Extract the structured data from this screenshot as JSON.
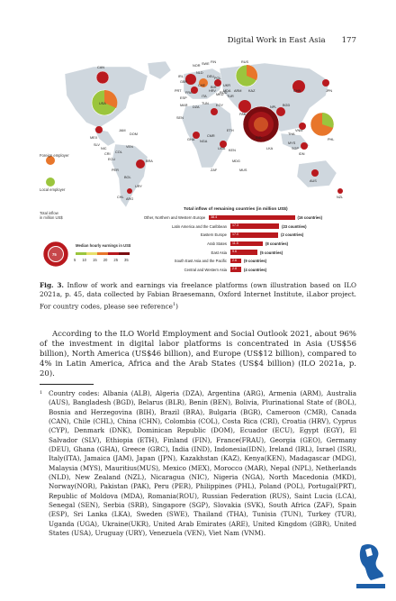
{
  "header": {
    "running_title": "Digital Work in East Asia",
    "page_number": "177"
  },
  "figure": {
    "legend": {
      "foreign_employer": "Foreign employer",
      "local_employer": "Local employer",
      "total_inflow_label": "Total inflow\nin million US$",
      "sample_pie_value": "75",
      "earnings_title": "Median hourly earnings in US$",
      "earnings_scale": [
        "5",
        "10",
        "15",
        "20",
        "25",
        "35"
      ]
    },
    "map_labels": [
      "SWE",
      "NOR",
      "FIN",
      "IRL",
      "NLD",
      "GBR",
      "DEU",
      "POL",
      "UKR",
      "RUS",
      "FRA",
      "ESP",
      "ITA",
      "ROU",
      "HRV",
      "CHE",
      "USA",
      "CAN",
      "MEX",
      "SLV",
      "NIC",
      "CRI",
      "COL",
      "ECU",
      "PER",
      "BOL",
      "BRA",
      "ARG",
      "CHL",
      "URY",
      "VEN",
      "DOM",
      "JAM",
      "PRT",
      "SEN",
      "GHA",
      "NGA",
      "CMR",
      "ETH",
      "EGY",
      "TUR",
      "TUN",
      "DZA",
      "MAR",
      "UGA",
      "KEN",
      "ZAF",
      "MDG",
      "IND",
      "PAK",
      "BGD",
      "LKA",
      "NPL",
      "CHN",
      "JPN",
      "PHL",
      "VNM",
      "IDN",
      "MYS",
      "SGP",
      "THA",
      "AUS",
      "NZL",
      "KAZ",
      "MUS",
      "ARM",
      "BIH",
      "MKD",
      "MDA"
    ],
    "bar_chart": {
      "title": "Total inflow of remaining countries (in million US$)",
      "rows": [
        {
          "label": "Other, Northern and Western Europe",
          "value": "38.4",
          "note": "(16 countries)"
        },
        {
          "label": "Latin America and the Caribbean",
          "value": "17.3",
          "note": "(23 countries)"
        },
        {
          "label": "Eastern Europe",
          "value": "17.0",
          "note": "(2 countries)"
        },
        {
          "label": "Arab States",
          "value": "11.5",
          "note": "(8 countries)"
        },
        {
          "label": "East Asia",
          "value": "9.6",
          "note": "(5 countries)"
        },
        {
          "label": "South East Asia and the Pacific",
          "value": "2.6",
          "note": "(9 countries)"
        },
        {
          "label": "Central and Western Asia",
          "value": "2.8",
          "note": "(4 countries)"
        }
      ]
    }
  },
  "caption": {
    "label": "Fig. 3.",
    "text": "Inflow of work and earnings via freelance platforms (own illustration based on ILO 2021a, p. 45, data collected by Fabian Braesemann, Oxford Internet Institute, iLabor project. For country codes, please see reference",
    "ref": "1",
    "tail": ")"
  },
  "body": "According to the ILO World Employment and Social Outlook 2021, about 96% of the investment in digital labor platforms is concentrated in Asia (US$56 billion), North America (US$46 billion), and Europe (US$12 billion), compared to 4% in Latin America, Africa and the Arab States (US$4 billion) (ILO 2021a, p. 20).",
  "footnote": {
    "mark": "1",
    "text": "Country codes: Albania (ALB), Algeria (DZA), Argentina (ARG), Armenia (ARM), Australia (AUS), Bangladesh (BGD), Belarus (BLR), Benin (BEN), Bolivia, Plurinational State of (BOL), Bosnia and Herzegovina (BIH), Brazil (BRA), Bulgaria (BGR), Cameroon (CMR), Canada (CAN), Chile (CHL), China (CHN), Colombia (COL), Costa Rica (CRI), Croatia (HRV), Cyprus (CYP), Denmark (DNK), Dominican Republic (DOM), Ecuador (ECU), Egypt (EGY), El Salvador (SLV), Ethiopia (ETH), Finland (FIN), France(FRAU), Georgia (GEO), Germany (DEU), Ghana (GHA), Greece (GRC), India (IND), Indonesia(IDN), Ireland (IRL), Israel (ISR), Italy(ITA), Jamaica (JAM), Japan (JPN), Kazakhstan (KAZ), Kenya(KEN), Madagascar (MDG), Malaysia (MYS), Mauritius(MUS), Mexico (MEX), Morocco (MAR), Nepal (NPL), Netherlands (NLD), New Zealand (NZL), Nicaragua (NIC), Nigeria (NGA), North Macedonia (MKD), Norway(NOR), Pakistan (PAK), Peru (PER), Philippines (PHL), Poland (POL), Portugal(PRT), Republic of Moldova (MDA), Romania(ROU), Russian Federation (RUS), Saint Lucia (LCA), Senegal (SEN), Serbia (SRB), Singapore (SGP), Slovakia (SVK), South Africa (ZAF), Spain (ESP), Sri Lanka (LKA), Sweden (SWE), Thailand (THA), Tunisia (TUN), Turkey (TUR), Uganda (UGA), Ukraine(UKR), United Arab Emirates (ARE), United Kingdom (GBR), United States (USA), Uruguay (URY), Venezuela (VEN), Viet Nam (VNM)."
  },
  "colors": {
    "accent_red": "#b9191e",
    "dark_red": "#7a0c10",
    "orange": "#e8762b",
    "green": "#9bc53d",
    "map_fill": "#cfd7de"
  },
  "publisher_logo": "springer-horse-logo"
}
